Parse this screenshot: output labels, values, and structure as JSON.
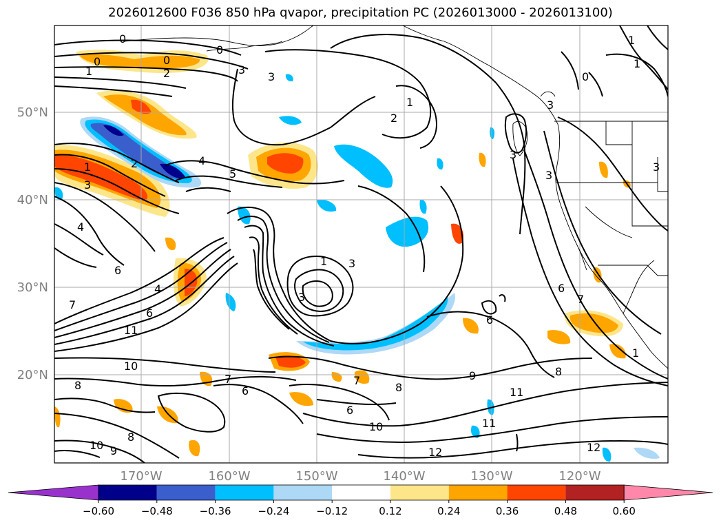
{
  "title": "2026012600 F036 850 hPa qvapor, precipitation PC (2026013000 - 2026013100)",
  "latitude_labels": [
    "50°N",
    "40°N",
    "30°N",
    "20°N"
  ],
  "longitude_labels": [
    "170°W",
    "160°W",
    "150°W",
    "140°W",
    "130°W",
    "120°W"
  ],
  "colorbar": {
    "ticks": [
      "-0.60",
      "-0.48",
      "-0.36",
      "-0.24",
      "-0.12",
      "0.12",
      "0.24",
      "0.36",
      "0.48",
      "0.60"
    ],
    "colors": [
      "#9932cc",
      "#00008b",
      "#3a5fcd",
      "#00bfff",
      "#add8f6",
      "#ffffff",
      "#fde68a",
      "#ffa500",
      "#ff4500",
      "#b22222",
      "#ff88aa"
    ]
  },
  "contour_labels": [
    "0",
    "0",
    "0",
    "0",
    "1",
    "2",
    "3",
    "3",
    "3",
    "2",
    "1",
    "1",
    "0",
    "3",
    "4",
    "5",
    "1",
    "3",
    "4",
    "6",
    "4",
    "7",
    "6",
    "11",
    "1",
    "3",
    "3",
    "2",
    "10",
    "8",
    "7",
    "6",
    "7",
    "8",
    "6",
    "9",
    "6",
    "8",
    "11",
    "10",
    "11",
    "12",
    "12",
    "9",
    "10",
    "8",
    "1",
    "6",
    "7",
    "1",
    "3",
    "3"
  ]
}
